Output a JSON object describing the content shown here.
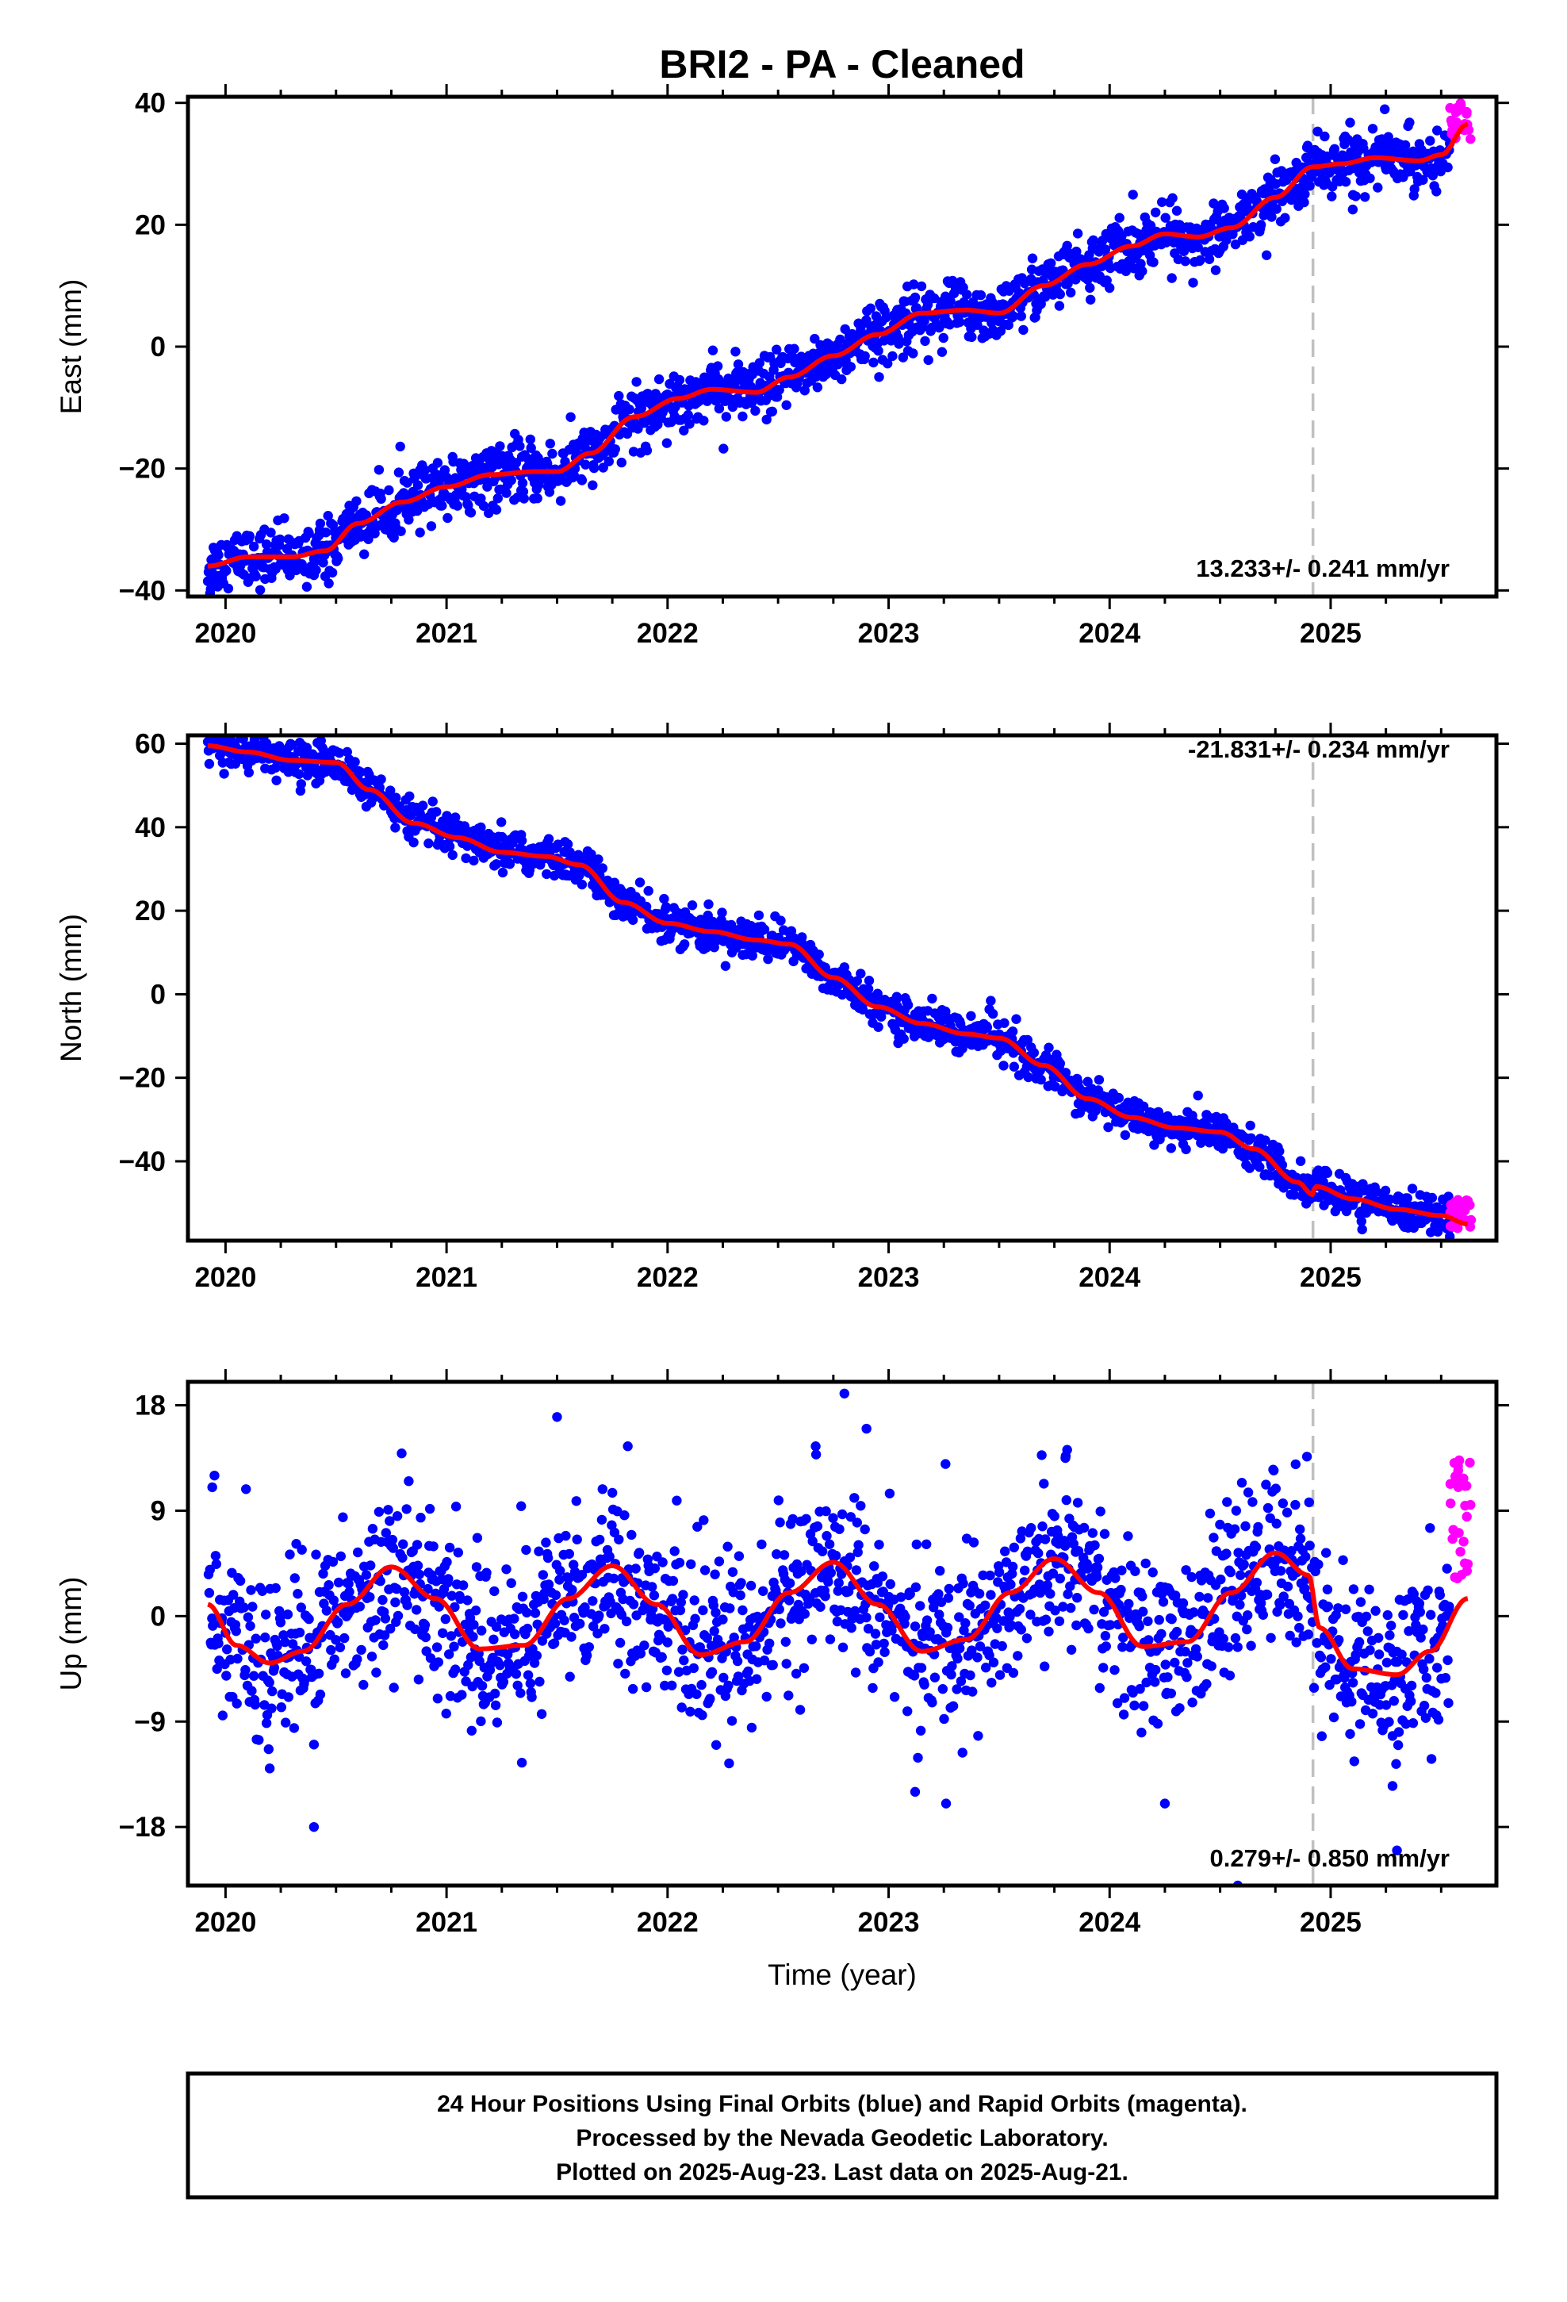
{
  "title": "BRI2  - PA - Cleaned",
  "xlabel": "Time (year)",
  "footer": [
    "24 Hour Positions Using Final Orbits (blue) and Rapid Orbits (magenta).",
    "Processed by the Nevada Geodetic Laboratory.",
    "Plotted on 2025-Aug-23. Last data on 2025-Aug-21."
  ],
  "colors": {
    "final": "#0000ff",
    "rapid": "#ff00ff",
    "model": "#ff0000",
    "event": "#c0c0c0",
    "frame": "#000000"
  },
  "chart_data": [
    {
      "type": "scatter",
      "component": "east",
      "ylabel": "East (mm)",
      "rate_text": "13.233+/- 0.241 mm/yr",
      "xlim": [
        2019.83,
        2025.75
      ],
      "ylim": [
        -41,
        41
      ],
      "x_ticks": [
        2020,
        2021,
        2022,
        2023,
        2024,
        2025
      ],
      "y_ticks": [
        40,
        20,
        0,
        -20,
        -40
      ],
      "y_tick_labels": [
        "40",
        "20",
        "0",
        "−20",
        "−40"
      ],
      "event_line_x": 2024.92,
      "rate_mm_per_yr": 13.233,
      "model_x": [
        2019.92,
        2020.1,
        2020.3,
        2020.45,
        2020.6,
        2020.8,
        2021.0,
        2021.2,
        2021.4,
        2021.5,
        2021.65,
        2021.85,
        2022.05,
        2022.2,
        2022.4,
        2022.55,
        2022.75,
        2022.95,
        2023.15,
        2023.35,
        2023.5,
        2023.7,
        2023.9,
        2024.1,
        2024.25,
        2024.4,
        2024.55,
        2024.75,
        2024.92,
        2025.05,
        2025.2,
        2025.4,
        2025.5,
        2025.62
      ],
      "model_y": [
        -36,
        -34.5,
        -34.5,
        -33.5,
        -29,
        -25.5,
        -23,
        -21,
        -20.5,
        -20.5,
        -17.5,
        -11.5,
        -8.5,
        -7,
        -7.5,
        -5,
        -1.5,
        2,
        5.5,
        6,
        5.5,
        10,
        13.5,
        16.5,
        18.5,
        18,
        19.5,
        24.5,
        29.5,
        30,
        31,
        30.5,
        31.5,
        36.5
      ],
      "final_positions": [
        {
          "x_range": [
            2019.92,
            2025.54
          ],
          "spread_mm": 2.4
        }
      ],
      "rapid_positions": {
        "x_range": [
          2025.54,
          2025.64
        ],
        "y_range": [
          34,
          40
        ]
      },
      "outliers": [
        [
          2019.93,
          -40.5
        ],
        [
          2019.94,
          -38.5
        ],
        [
          2020.2,
          -36.5
        ],
        [
          2020.4,
          -37.5
        ],
        [
          2020.88,
          -30.5
        ],
        [
          2022.85,
          1.5
        ],
        [
          2023.18,
          -2.2
        ],
        [
          2025.1,
          22.5
        ]
      ]
    },
    {
      "type": "scatter",
      "component": "north",
      "ylabel": "North (mm)",
      "rate_text": "-21.831+/- 0.234 mm/yr",
      "xlim": [
        2019.83,
        2025.75
      ],
      "ylim": [
        -59,
        62
      ],
      "x_ticks": [
        2020,
        2021,
        2022,
        2023,
        2024,
        2025
      ],
      "y_ticks": [
        60,
        40,
        20,
        0,
        -20,
        -40
      ],
      "y_tick_labels": [
        "60",
        "40",
        "20",
        "0",
        "−20",
        "−40"
      ],
      "event_line_x": 2024.92,
      "rate_mm_per_yr": -21.831,
      "model_x": [
        2019.92,
        2020.1,
        2020.3,
        2020.5,
        2020.65,
        2020.85,
        2021.05,
        2021.25,
        2021.45,
        2021.6,
        2021.8,
        2022.0,
        2022.2,
        2022.4,
        2022.55,
        2022.75,
        2022.95,
        2023.15,
        2023.35,
        2023.5,
        2023.7,
        2023.9,
        2024.1,
        2024.3,
        2024.5,
        2024.65,
        2024.85,
        2024.92,
        2024.93,
        2025.1,
        2025.3,
        2025.5,
        2025.62
      ],
      "model_y": [
        59.5,
        58,
        56,
        55.5,
        49,
        41,
        37.5,
        34,
        33,
        31,
        22,
        17,
        15,
        13,
        12,
        4,
        -3,
        -7,
        -9.5,
        -10.5,
        -17,
        -25,
        -29.5,
        -32,
        -33,
        -37,
        -45,
        -48,
        -46,
        -49,
        -51.5,
        -53,
        -55
      ],
      "final_positions": [
        {
          "x_range": [
            2019.92,
            2025.54
          ],
          "spread_mm": 2.3
        }
      ],
      "rapid_positions": {
        "x_range": [
          2025.54,
          2025.64
        ],
        "y_range": [
          -56,
          -49
        ]
      }
    },
    {
      "type": "scatter",
      "component": "up",
      "ylabel": "Up (mm)",
      "rate_text": "0.279+/- 0.850 mm/yr",
      "xlim": [
        2019.83,
        2025.75
      ],
      "ylim": [
        -23,
        20
      ],
      "x_ticks": [
        2020,
        2021,
        2022,
        2023,
        2024,
        2025
      ],
      "y_ticks": [
        18,
        9,
        0,
        -9,
        -18
      ],
      "y_tick_labels": [
        "18",
        "9",
        "0",
        "−9",
        "−18"
      ],
      "event_line_x": 2024.92,
      "rate_mm_per_yr": 0.279,
      "model_x": [
        2019.92,
        2020.05,
        2020.2,
        2020.35,
        2020.55,
        2020.75,
        2020.95,
        2021.15,
        2021.35,
        2021.55,
        2021.75,
        2021.95,
        2022.15,
        2022.35,
        2022.55,
        2022.75,
        2022.95,
        2023.15,
        2023.35,
        2023.55,
        2023.75,
        2023.95,
        2024.15,
        2024.35,
        2024.55,
        2024.75,
        2024.9,
        2024.95,
        2025.1,
        2025.3,
        2025.45,
        2025.62
      ],
      "model_y": [
        1,
        -2.5,
        -4,
        -3,
        1,
        4.2,
        1.5,
        -2.8,
        -2.5,
        1.5,
        4.3,
        1,
        -3.3,
        -2.2,
        2,
        4.6,
        1,
        -3,
        -2,
        2,
        4.9,
        2,
        -2.6,
        -2.2,
        2,
        5.4,
        3.5,
        -1,
        -4.5,
        -5,
        -3,
        1.5
      ],
      "final_positions": [
        {
          "x_range": [
            2019.92,
            2025.54
          ],
          "spread_mm": 3.6
        }
      ],
      "rapid_positions": {
        "x_range": [
          2025.54,
          2025.64
        ],
        "y_range": [
          3,
          14
        ]
      },
      "outliers": [
        [
          2019.95,
          12
        ],
        [
          2019.94,
          11
        ],
        [
          2020.4,
          -18
        ],
        [
          2020.2,
          -13
        ],
        [
          2021.5,
          17
        ],
        [
          2021.82,
          14.5
        ],
        [
          2022.67,
          14.5
        ],
        [
          2022.8,
          19
        ],
        [
          2022.9,
          16
        ],
        [
          2022.22,
          -11
        ],
        [
          2022.6,
          -8
        ],
        [
          2023.12,
          -15
        ],
        [
          2023.26,
          -16
        ],
        [
          2023.8,
          13.5
        ],
        [
          2024.25,
          -16
        ],
        [
          2024.74,
          12.5
        ],
        [
          2024.84,
          9.5
        ],
        [
          2025.3,
          -20
        ],
        [
          2025.28,
          -14.5
        ],
        [
          2024.58,
          -23
        ]
      ]
    }
  ]
}
